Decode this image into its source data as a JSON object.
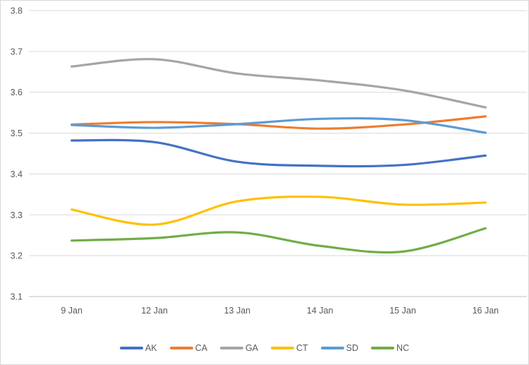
{
  "chart_data": {
    "type": "line",
    "title": "",
    "xlabel": "",
    "ylabel": "",
    "categories": [
      "9 Jan",
      "12 Jan",
      "13 Jan",
      "14 Jan",
      "15 Jan",
      "16 Jan"
    ],
    "series": [
      {
        "name": "AK",
        "color": "#4472C4",
        "values": [
          3.482,
          3.478,
          3.43,
          3.42,
          3.422,
          3.445
        ]
      },
      {
        "name": "CA",
        "color": "#ED7D31",
        "values": [
          3.521,
          3.527,
          3.522,
          3.511,
          3.521,
          3.541
        ]
      },
      {
        "name": "GA",
        "color": "#A5A5A5",
        "values": [
          3.663,
          3.681,
          3.646,
          3.629,
          3.605,
          3.563
        ]
      },
      {
        "name": "CT",
        "color": "#FFC000",
        "values": [
          3.313,
          3.276,
          3.333,
          3.344,
          3.325,
          3.33
        ]
      },
      {
        "name": "SD",
        "color": "#5B9BD5",
        "values": [
          3.52,
          3.513,
          3.522,
          3.535,
          3.532,
          3.501
        ]
      },
      {
        "name": "NC",
        "color": "#70AD47",
        "values": [
          3.237,
          3.243,
          3.257,
          3.224,
          3.21,
          3.267
        ]
      }
    ],
    "ylim": [
      3.1,
      3.8
    ],
    "y_tick_step": 0.1,
    "y_tick_labels": [
      "3.8",
      "3.7",
      "3.6",
      "3.5",
      "3.4",
      "3.3",
      "3.2",
      "3.1"
    ],
    "grid": true,
    "smooth_lines": true,
    "legend_position": "bottom"
  },
  "style": {
    "gridline_color": "#D9D9D9",
    "axis_line_color": "#BFBFBF",
    "tick_text_color": "#595959",
    "border_color": "#D7D7D7",
    "background_color": "#FFFFFF"
  }
}
